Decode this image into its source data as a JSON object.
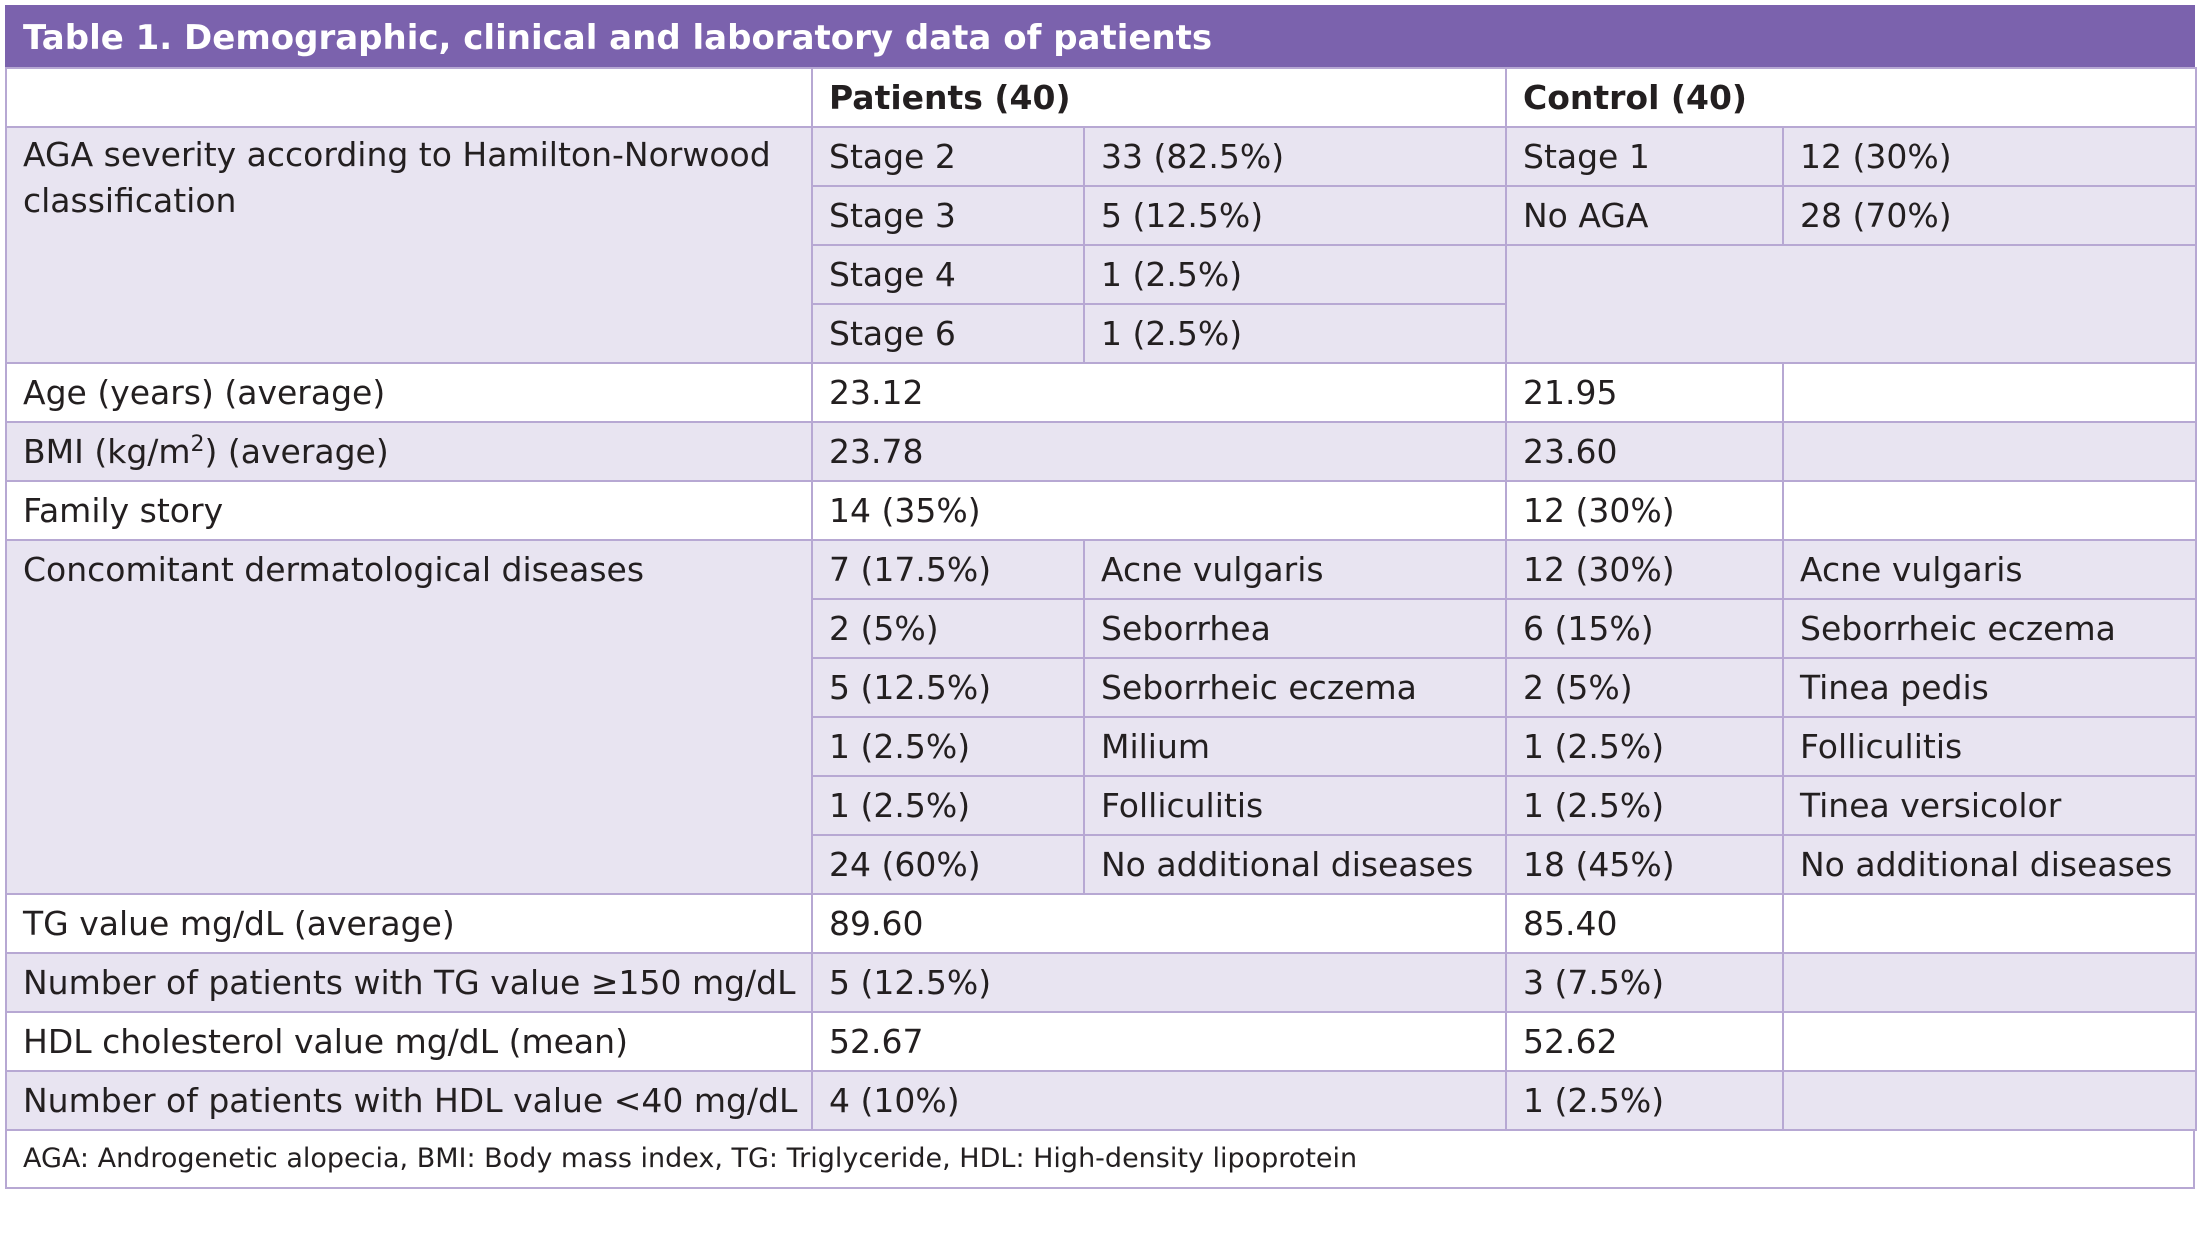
{
  "title": "Table 1. Demographic, clinical and laboratory data of patients",
  "header": {
    "empty": "",
    "patients": "Patients (40)",
    "control": "Control (40)"
  },
  "aga": {
    "label": "AGA severity according to Hamilton-Norwood classification",
    "patients": [
      {
        "stage": "Stage 2",
        "value": "33 (82.5%)"
      },
      {
        "stage": "Stage 3",
        "value": "5 (12.5%)"
      },
      {
        "stage": "Stage 4",
        "value": "1 (2.5%)"
      },
      {
        "stage": "Stage 6",
        "value": "1 (2.5%)"
      }
    ],
    "control": [
      {
        "stage": "Stage 1",
        "value": "12 (30%)"
      },
      {
        "stage": "No AGA",
        "value": "28 (70%)"
      }
    ]
  },
  "age": {
    "label": "Age (years) (average)",
    "patients": "23.12",
    "control": "21.95"
  },
  "bmi": {
    "label_pre": "BMI (kg/m",
    "label_sup": "2",
    "label_post": ") (average)",
    "patients": "23.78",
    "control": "23.60"
  },
  "family": {
    "label": "Family story",
    "patients": "14 (35%)",
    "control": "12 (30%)"
  },
  "derm": {
    "label": "Concomitant dermatological diseases",
    "rows": [
      {
        "p_val": "7 (17.5%)",
        "p_name": "Acne vulgaris",
        "c_val": "12 (30%)",
        "c_name": "Acne vulgaris"
      },
      {
        "p_val": "2 (5%)",
        "p_name": "Seborrhea",
        "c_val": "6 (15%)",
        "c_name": "Seborrheic eczema"
      },
      {
        "p_val": "5 (12.5%)",
        "p_name": "Seborrheic eczema",
        "c_val": "2 (5%)",
        "c_name": "Tinea pedis"
      },
      {
        "p_val": "1 (2.5%)",
        "p_name": "Milium",
        "c_val": "1 (2.5%)",
        "c_name": "Folliculitis"
      },
      {
        "p_val": "1 (2.5%)",
        "p_name": "Folliculitis",
        "c_val": "1 (2.5%)",
        "c_name": "Tinea versicolor"
      },
      {
        "p_val": "24 (60%)",
        "p_name": "No additional diseases",
        "c_val": "18 (45%)",
        "c_name": "No additional diseases"
      }
    ]
  },
  "tg": {
    "label": "TG value mg/dL (average)",
    "patients": "89.60",
    "control": "85.40"
  },
  "tg150": {
    "label": "Number of patients with TG value ≥150 mg/dL",
    "patients": "5 (12.5%)",
    "control": "3 (7.5%)"
  },
  "hdl": {
    "label": "HDL cholesterol value mg/dL (mean)",
    "patients": "52.67",
    "control": "52.62"
  },
  "hdl40": {
    "label": "Number of patients with HDL value <40 mg/dL",
    "patients": "4 (10%)",
    "control": "1 (2.5%)"
  },
  "footer": "AGA: Androgenetic alopecia, BMI: Body mass index, TG: Triglyceride, HDL: High-density lipoprotein"
}
